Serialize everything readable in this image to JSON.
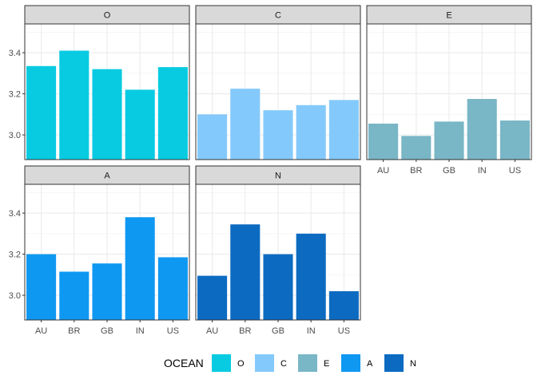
{
  "chart_data": {
    "type": "bar",
    "facet_by": "OCEAN",
    "categories": [
      "AU",
      "BR",
      "GB",
      "IN",
      "US"
    ],
    "ylim": [
      2.88,
      3.54
    ],
    "yticks": [
      3.0,
      3.2,
      3.4
    ],
    "ytick_labels": [
      "3.0",
      "3.2",
      "3.4"
    ],
    "grid": true,
    "legend": {
      "title": "OCEAN",
      "placement": "bottom",
      "entries": [
        "O",
        "C",
        "E",
        "A",
        "N"
      ]
    },
    "series": [
      {
        "name": "O",
        "color": "#08cbe1",
        "values": [
          3.335,
          3.41,
          3.32,
          3.22,
          3.33
        ]
      },
      {
        "name": "C",
        "color": "#84c9fb",
        "values": [
          3.1,
          3.225,
          3.12,
          3.145,
          3.17
        ]
      },
      {
        "name": "E",
        "color": "#79b6c6",
        "values": [
          3.055,
          2.995,
          3.065,
          3.175,
          3.07
        ]
      },
      {
        "name": "A",
        "color": "#0f98f2",
        "values": [
          3.2,
          3.115,
          3.155,
          3.38,
          3.185
        ]
      },
      {
        "name": "N",
        "color": "#0c6bc1",
        "values": [
          3.095,
          3.345,
          3.2,
          3.3,
          3.02
        ]
      }
    ]
  }
}
